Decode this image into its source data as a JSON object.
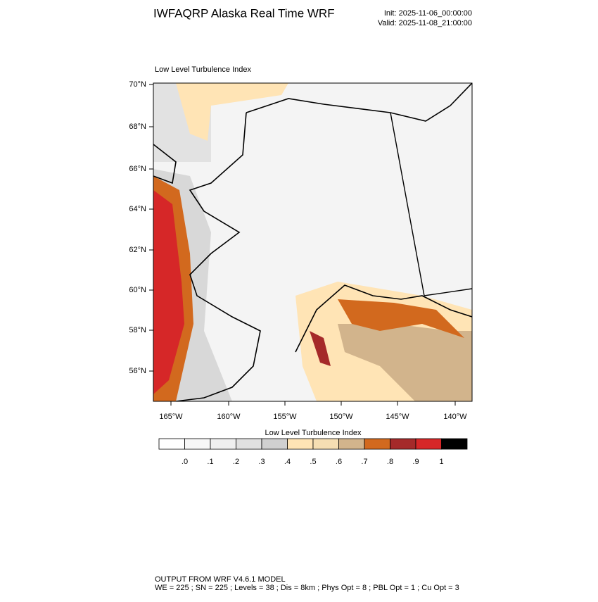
{
  "header": {
    "title": "IWFAQRP Alaska Real Time WRF",
    "init": "Init: 2025-11-06_00:00:00",
    "valid": "Valid: 2025-11-08_21:00:00"
  },
  "map": {
    "title": "Low Level Turbulence Index",
    "lat_labels": [
      "70°N",
      "68°N",
      "66°N",
      "64°N",
      "62°N",
      "60°N",
      "58°N",
      "56°N"
    ],
    "lon_labels": [
      "165°W",
      "160°W",
      "155°W",
      "150°W",
      "145°W",
      "140°W"
    ]
  },
  "colorbar": {
    "title": "Low Level Turbulence Index",
    "colors": [
      "#ffffff",
      "#f7f7f7",
      "#efefef",
      "#e0e0e0",
      "#d0d0d0",
      "#ffe4b5",
      "#f5deb3",
      "#d2b48c",
      "#d2691e",
      "#a52a2a",
      "#d62728",
      "#000000"
    ],
    "labels": [
      ".0",
      ".1",
      ".2",
      ".3",
      ".4",
      ".5",
      ".6",
      ".7",
      ".8",
      ".9",
      "1"
    ]
  },
  "footer": {
    "line1": "OUTPUT FROM WRF V4.6.1 MODEL",
    "line2": "WE = 225 ; SN = 225 ; Levels = 38 ; Dis = 8km ; Phys Opt = 8 ; PBL Opt = 1 ; Cu Opt = 3"
  }
}
